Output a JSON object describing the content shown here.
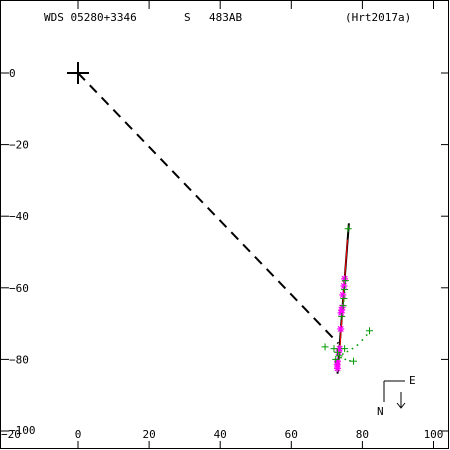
{
  "header": {
    "wds_id": "WDS 05280+3346",
    "grade": "S",
    "discoverer": "483AB",
    "reference": "(Hrt2017a)"
  },
  "compass": {
    "north": "N",
    "east": "E"
  },
  "colors": {
    "axis": "#000000",
    "orbit": "#000000",
    "fit_line": "#ff0000",
    "obs_star": "#ff00ff",
    "obs_plus": "#009900"
  },
  "chart_data": {
    "type": "scatter",
    "title": "",
    "xlabel": "",
    "ylabel": "",
    "xlim": [
      -20,
      103
    ],
    "ylim": [
      -100,
      20
    ],
    "grid": false,
    "x_ticks": [
      0,
      20,
      40,
      60,
      80,
      100
    ],
    "x_tick_labels": [
      "0",
      "20",
      "40",
      "60",
      "80",
      "100"
    ],
    "y_ticks": [
      0,
      -20,
      -40,
      -60,
      -80,
      -100
    ],
    "y_tick_labels": [
      "0",
      "−20",
      "−40",
      "−60",
      "−80",
      "−100"
    ],
    "corner_labels": {
      "x_min": "−20",
      "y_min": "−100"
    },
    "primary": [
      0,
      0
    ],
    "connector_to": [
      73.2,
      -75.5
    ],
    "orbit_line": [
      [
        73.0,
        -84.0
      ],
      [
        76.2,
        -42.0
      ]
    ],
    "fit_line": [
      [
        73.3,
        -82.0
      ],
      [
        75.8,
        -46.5
      ]
    ],
    "series": [
      {
        "marker": "star",
        "points": [
          [
            75.0,
            -57.5
          ],
          [
            74.8,
            -59.5
          ],
          [
            74.5,
            -62.0
          ],
          [
            74.3,
            -65.5
          ],
          [
            74.0,
            -67.0
          ],
          [
            74.2,
            -66.2
          ],
          [
            73.9,
            -71.5
          ],
          [
            73.6,
            -77.0
          ],
          [
            73.3,
            -78.0
          ],
          [
            73.0,
            -80.5
          ],
          [
            72.9,
            -81.5
          ],
          [
            73.0,
            -82.5
          ]
        ]
      },
      {
        "marker": "plus",
        "points": [
          [
            76.0,
            -43.5
          ],
          [
            75.2,
            -58.0
          ],
          [
            75.0,
            -60.5
          ],
          [
            74.8,
            -63.0
          ],
          [
            74.6,
            -65.0
          ],
          [
            74.2,
            -68.0
          ],
          [
            82.0,
            -72.0
          ],
          [
            69.5,
            -76.5
          ],
          [
            72.0,
            -77.0
          ],
          [
            75.0,
            -77.0
          ],
          [
            73.0,
            -78.0
          ],
          [
            77.5,
            -80.5
          ],
          [
            72.5,
            -80.0
          ],
          [
            73.5,
            -79.0
          ]
        ]
      }
    ],
    "dotted_trail": [
      [
        74.5,
        -78.5
      ],
      [
        75.8,
        -77.8
      ],
      [
        77.2,
        -77.0
      ],
      [
        78.6,
        -76.0
      ],
      [
        80.0,
        -74.6
      ],
      [
        81.2,
        -73.2
      ],
      [
        74.0,
        -79.5
      ],
      [
        75.2,
        -80.0
      ],
      [
        76.5,
        -80.4
      ]
    ]
  }
}
